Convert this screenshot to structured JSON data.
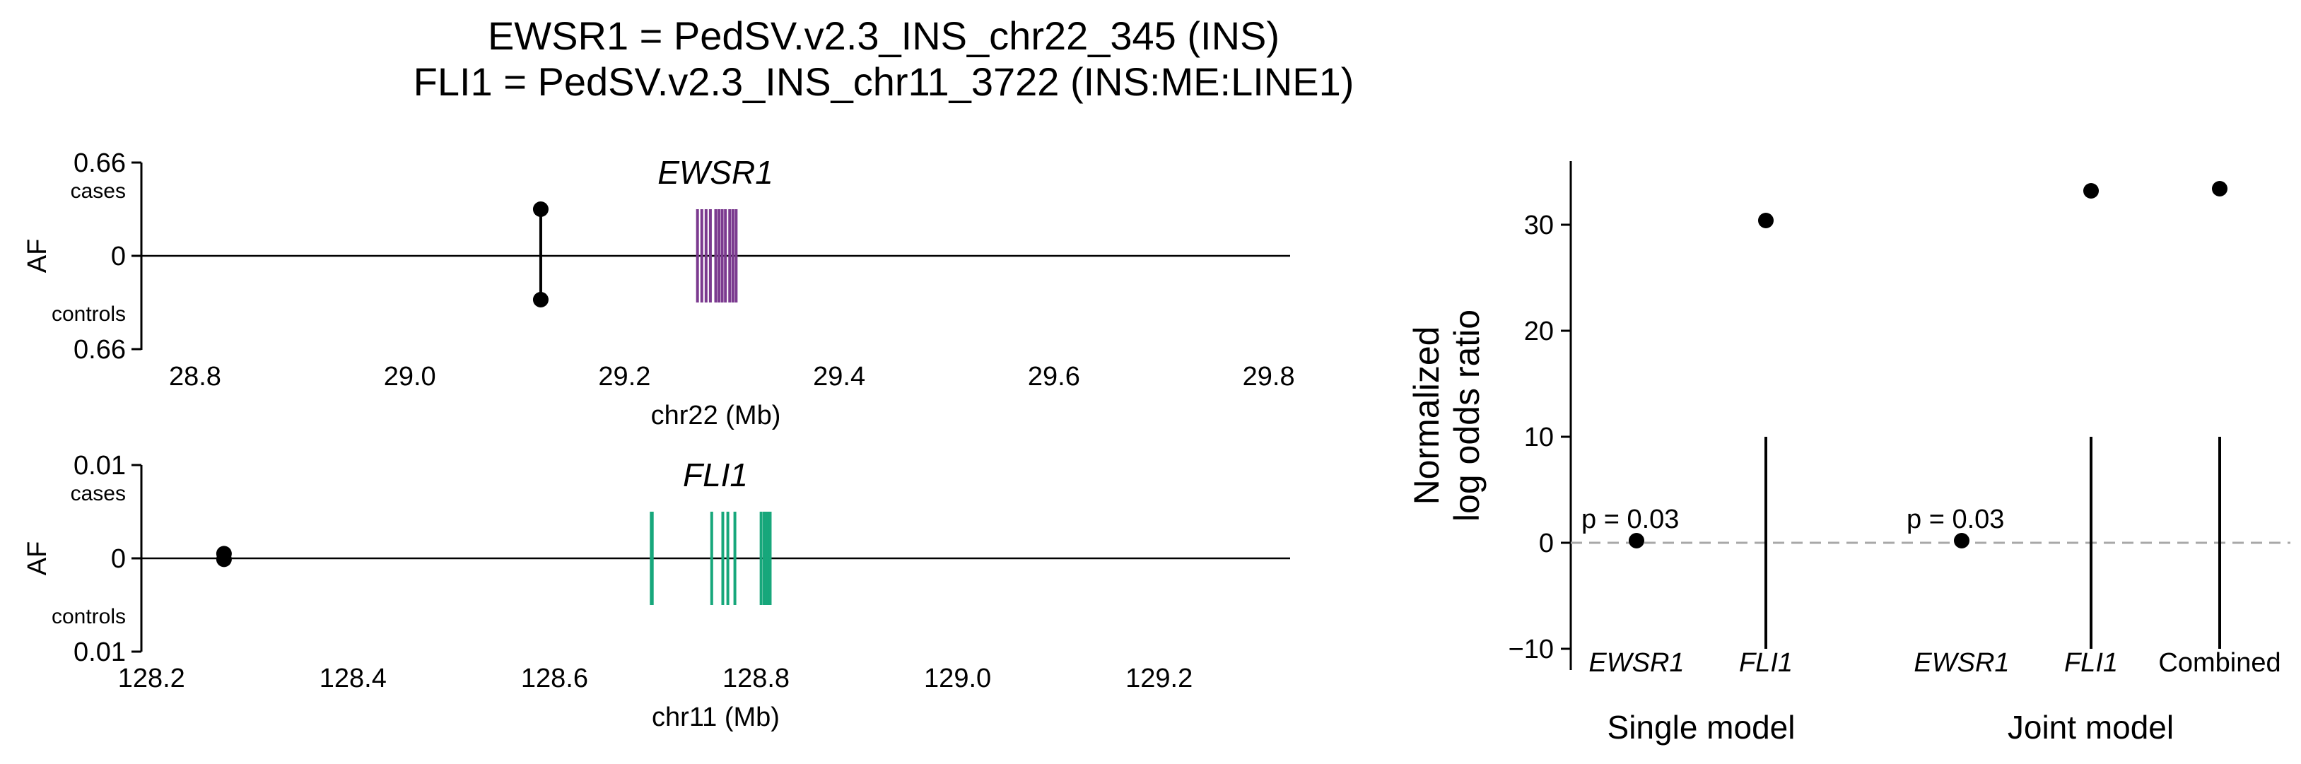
{
  "title": {
    "line1": "EWSR1 = PedSV.v2.3_INS_chr22_345 (INS)",
    "line2": "FLI1 = PedSV.v2.3_INS_chr11_3722 (INS:ME:LINE1)"
  },
  "colors": {
    "ewsr1_exon": "#7B3A8F",
    "fli1_exon": "#17A77B",
    "marker": "#000000",
    "zero_line": "#A8A8A8"
  },
  "chart_data": [
    {
      "type": "scatter",
      "panel": "EWSR1 locus",
      "gene": "EWSR1",
      "xlabel": "chr22 (Mb)",
      "ylabel": "AF",
      "xlim": [
        28.75,
        29.82
      ],
      "ylim": [
        -0.66,
        0.66
      ],
      "xticks": [
        "28.8",
        "29.0",
        "29.2",
        "29.4",
        "29.6",
        "29.8"
      ],
      "xtick_values": [
        28.8,
        29.0,
        29.2,
        29.4,
        29.6,
        29.8
      ],
      "yticks": [
        "0.66",
        "0",
        "0.66"
      ],
      "ytick_values": [
        0.66,
        0,
        -0.66
      ],
      "cases_label": "cases",
      "controls_label": "controls",
      "variant": {
        "pos": 29.122,
        "case_af": 0.33,
        "control_af": 0.31
      },
      "exons": [
        29.268,
        29.272,
        29.276,
        29.28,
        29.285,
        29.288,
        29.291,
        29.294,
        29.298,
        29.301,
        29.304
      ],
      "exon_half_height": 0.33
    },
    {
      "type": "scatter",
      "panel": "FLI1 locus",
      "gene": "FLI1",
      "xlabel": "chr11 (Mb)",
      "ylabel": "AF",
      "xlim": [
        128.19,
        129.33
      ],
      "ylim": [
        -0.01,
        0.01
      ],
      "xticks": [
        "128.2",
        "128.4",
        "128.6",
        "128.8",
        "129.0",
        "129.2"
      ],
      "xtick_values": [
        128.2,
        128.4,
        128.6,
        128.8,
        129.0,
        129.2
      ],
      "yticks": [
        "0.01",
        "0",
        "0.01"
      ],
      "ytick_values": [
        0.01,
        0,
        -0.01
      ],
      "cases_label": "cases",
      "controls_label": "controls",
      "variant": {
        "pos": 128.272,
        "case_af": 0.0005,
        "control_af": 0.0001
      },
      "exons": [
        128.696,
        128.697,
        128.756,
        128.767,
        128.772,
        128.779,
        128.805,
        128.808,
        128.81,
        128.812,
        128.814
      ],
      "exon_half_height": 0.005
    },
    {
      "type": "scatter",
      "panel": "Effect sizes",
      "ylabel_line1": "Normalized",
      "ylabel_line2": "log odds ratio",
      "ylim": [
        -12,
        36
      ],
      "yticks": [
        "30",
        "20",
        "10",
        "0",
        "−10"
      ],
      "ytick_values": [
        30,
        20,
        10,
        0,
        -10
      ],
      "groups": [
        {
          "name": "Single model",
          "categories": [
            "EWSR1",
            "FLI1"
          ]
        },
        {
          "name": "Joint model",
          "categories": [
            "EWSR1",
            "FLI1",
            "Combined"
          ]
        }
      ],
      "points": [
        {
          "group": "Single model",
          "category": "EWSR1",
          "value": 0.2,
          "ci": null,
          "pvalue": "p = 0.03",
          "italic": true
        },
        {
          "group": "Single model",
          "category": "FLI1",
          "value": 30.4,
          "ci": [
            -10,
            10
          ],
          "pvalue": null,
          "italic": true
        },
        {
          "group": "Joint model",
          "category": "EWSR1",
          "value": 0.2,
          "ci": null,
          "pvalue": "p = 0.03",
          "italic": true
        },
        {
          "group": "Joint model",
          "category": "FLI1",
          "value": 33.2,
          "ci": [
            -10,
            10
          ],
          "pvalue": null,
          "italic": true
        },
        {
          "group": "Joint model",
          "category": "Combined",
          "value": 33.4,
          "ci": [
            -10,
            10
          ],
          "pvalue": null,
          "italic": false
        }
      ],
      "reference_line": 0
    }
  ]
}
